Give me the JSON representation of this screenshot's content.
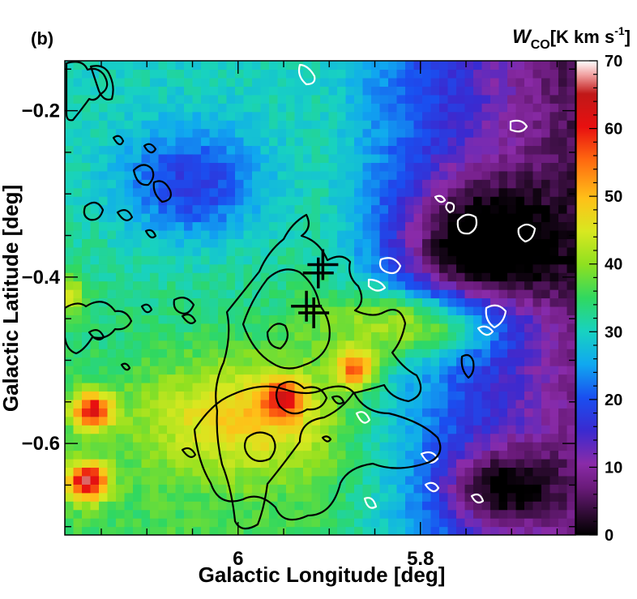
{
  "chart_data": {
    "type": "heatmap",
    "panel_label": "(b)",
    "xlabel": "Galactic Longitude [deg]",
    "ylabel": "Galactic Latitude [deg]",
    "colorbar_label": {
      "symbol": "W",
      "subscript": "CO",
      "unit_open": "[K km s",
      "unit_sup": "-1",
      "unit_close": "]"
    },
    "x_axis": {
      "reversed": true,
      "xlim": [
        6.19,
        5.63
      ],
      "ticks": [
        6,
        5.8
      ],
      "tick_labels": [
        "6",
        "5.8"
      ]
    },
    "y_axis": {
      "ylim": [
        -0.71,
        -0.14
      ],
      "ticks": [
        -0.2,
        -0.4,
        -0.6
      ],
      "tick_labels": [
        "−0.2",
        "−0.4",
        "−0.6"
      ]
    },
    "colorbar": {
      "range": [
        0,
        70
      ],
      "ticks": [
        0,
        10,
        20,
        30,
        40,
        50,
        60,
        70
      ],
      "tick_labels": [
        "0",
        "10",
        "20",
        "30",
        "40",
        "50",
        "60",
        "70"
      ]
    },
    "grid": false,
    "features": {
      "peaks": [
        {
          "l": 6.16,
          "b": -0.56,
          "value": 66
        },
        {
          "l": 6.165,
          "b": -0.645,
          "value": 70
        },
        {
          "l": 5.87,
          "b": -0.51,
          "value": 62
        },
        {
          "l": 5.95,
          "b": -0.545,
          "value": 58
        },
        {
          "l": 6.19,
          "b": -0.42,
          "value": 52
        }
      ],
      "markers": [
        {
          "l": 5.912,
          "b": -0.395,
          "symbol": "+"
        },
        {
          "l": 5.907,
          "b": -0.385,
          "symbol": "+"
        },
        {
          "l": 5.925,
          "b": -0.435,
          "symbol": "+"
        },
        {
          "l": 5.917,
          "b": -0.443,
          "symbol": "+"
        }
      ]
    }
  }
}
